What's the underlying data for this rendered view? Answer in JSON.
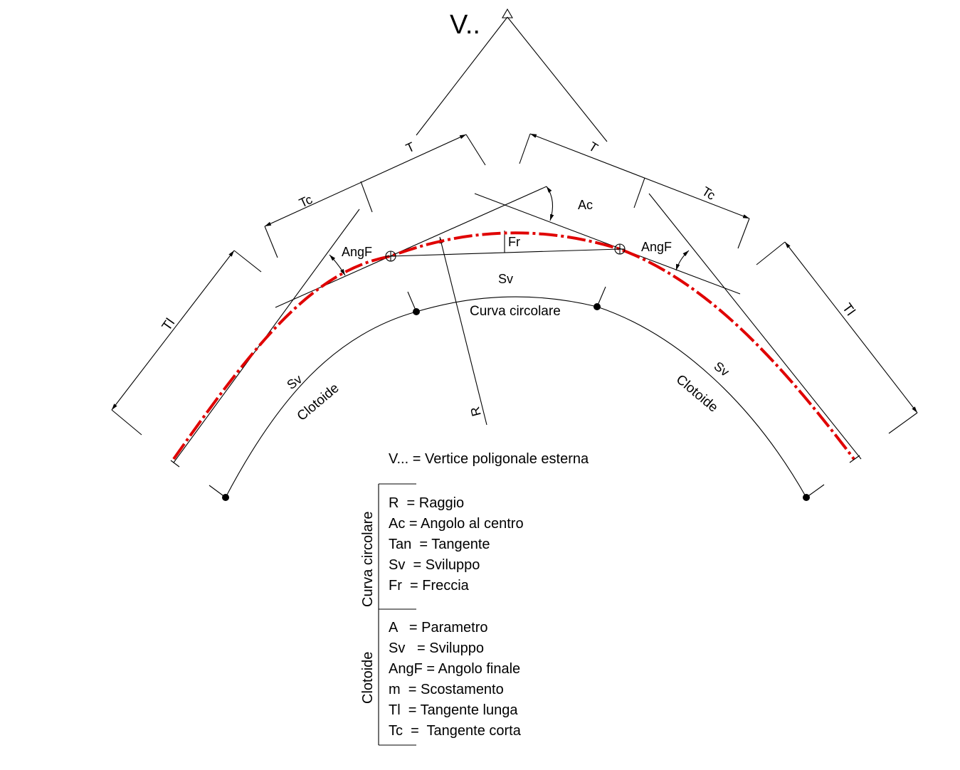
{
  "labels": {
    "vertex": "V..",
    "T": "T",
    "Tc": "Tc",
    "Tl": "Tl",
    "Ac": "Ac",
    "AngF": "AngF",
    "Fr": "Fr",
    "Sv": "Sv",
    "R": "R",
    "curva_circolare": "Curva circolare",
    "clotoide": "Clotoide"
  },
  "legend": {
    "vertex_def": "V... = Vertice poligonale esterna",
    "circular_group": "Curva circolare",
    "circular_items": [
      "R  = Raggio",
      "Ac = Angolo al centro",
      "Tan  = Tangente",
      "Sv  = Sviluppo",
      "Fr  = Freccia"
    ],
    "clothoid_group": "Clotoide",
    "clothoid_items": [
      "A   = Parametro",
      "Sv   = Sviluppo",
      "AngF = Angolo finale",
      "m  = Scostamento",
      "Tl  = Tangente lunga",
      "Tc  =  Tangente corta"
    ]
  },
  "colors": {
    "axis_line": "#e00000",
    "drawing": "#000000"
  }
}
